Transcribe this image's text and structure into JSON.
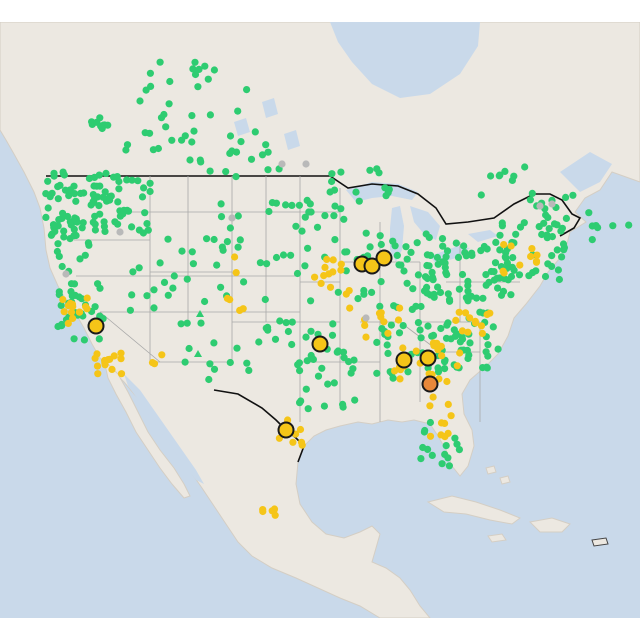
{
  "map": {
    "colors": {
      "water": "#c9d9ea",
      "land": "#ece8e1",
      "land_edge": "#d4cec4",
      "border_country": "#111111",
      "border_state": "#a8a8a8",
      "lakes": "#c9d9ea"
    },
    "marker_colors": {
      "green": "#2ecc71",
      "yellow": "#f5c518",
      "orange": "#e8883a",
      "gray": "#b9b9b9",
      "outline": "#1a1a1a"
    },
    "marker_icons": {
      "small_station": "circle-marker",
      "large_station": "outlined-circle-marker",
      "triangle_station": "triangle-marker"
    }
  }
}
